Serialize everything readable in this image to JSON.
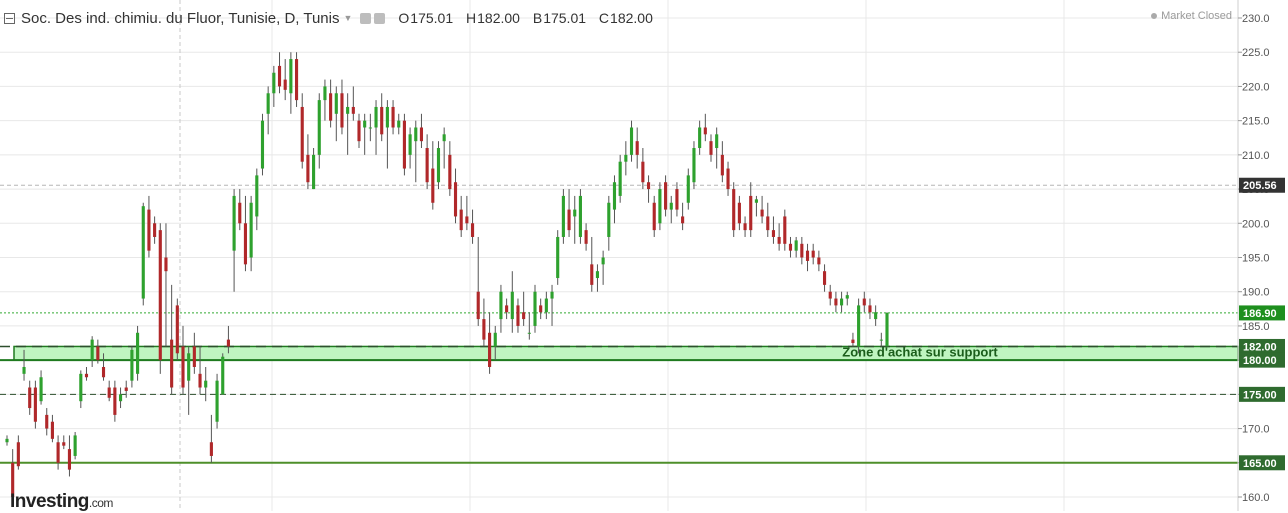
{
  "header": {
    "title": "Soc. Des ind. chimiu. du Fluor, Tunisie, D, Tunis",
    "open_label": "O",
    "open": "175.01",
    "high_label": "H",
    "high": "182.00",
    "low_label": "B",
    "low": "175.01",
    "close_label": "C",
    "close": "182.00"
  },
  "market_status": "Market Closed",
  "brand": {
    "name": "Investing",
    "suffix": ".com"
  },
  "colors": {
    "up": "#2ea12e",
    "down": "#b0282a",
    "zone_fill": "#bff5c0",
    "zone_line": "#1f7a1f",
    "level_line": "#4f8f2a",
    "grid": "#e8e8e8",
    "current_price_tag": "#1e8f1e",
    "level_tag": "#2f6b2f",
    "crosshair_tag": "#333333"
  },
  "chart_data": {
    "type": "candlestick",
    "y_range": [
      158,
      232
    ],
    "y_ticks": [
      160,
      165,
      170,
      175,
      180,
      185,
      190,
      195,
      200,
      205,
      210,
      215,
      220,
      225,
      230
    ],
    "grid": true,
    "support_zone": {
      "from": 180.0,
      "to": 182.0,
      "label": "Zone d'achat sur support"
    },
    "price_tags": [
      {
        "value": "205.56",
        "kind": "crosshair"
      },
      {
        "value": "186.90",
        "kind": "current"
      },
      {
        "value": "182.00",
        "kind": "level"
      },
      {
        "value": "180.00",
        "kind": "level"
      },
      {
        "value": "175.00",
        "kind": "level"
      },
      {
        "value": "165.00",
        "kind": "level"
      }
    ],
    "candles": [
      [
        168,
        169,
        167.5,
        168.5
      ],
      [
        165,
        167,
        159,
        160
      ],
      [
        168,
        169,
        164,
        164.5
      ],
      [
        178,
        181.5,
        177,
        179
      ],
      [
        176,
        177,
        172,
        173
      ],
      [
        176,
        177,
        170,
        171
      ],
      [
        174,
        178.5,
        173.5,
        177.5
      ],
      [
        172,
        173,
        169,
        170
      ],
      [
        171,
        172,
        168,
        168.5
      ],
      [
        168,
        169,
        164,
        165
      ],
      [
        168,
        169,
        167,
        167.5
      ],
      [
        167,
        169,
        163,
        164
      ],
      [
        166,
        169.5,
        165.5,
        169
      ],
      [
        174,
        178.5,
        173,
        178
      ],
      [
        178,
        179,
        177,
        177.5
      ],
      [
        180,
        183.5,
        179,
        183
      ],
      [
        182,
        183,
        179.5,
        180
      ],
      [
        179,
        181,
        177,
        177.5
      ],
      [
        176,
        177,
        174,
        174.5
      ],
      [
        176,
        177,
        171,
        172
      ],
      [
        174,
        176,
        173,
        175
      ],
      [
        176,
        177,
        174.5,
        175.5
      ],
      [
        177,
        182,
        176,
        181.5
      ],
      [
        178,
        185,
        177,
        184
      ],
      [
        189,
        203,
        188,
        202.5
      ],
      [
        202,
        204,
        195,
        196
      ],
      [
        200,
        201,
        197,
        198
      ],
      [
        199,
        200,
        178,
        180
      ],
      [
        195,
        200,
        182,
        193
      ],
      [
        183,
        191,
        175,
        176
      ],
      [
        188,
        189,
        180,
        181
      ],
      [
        182,
        185,
        175,
        176
      ],
      [
        177,
        182,
        172,
        181
      ],
      [
        182,
        184,
        178,
        179
      ],
      [
        178,
        182,
        175,
        176
      ],
      [
        176,
        179,
        174,
        177
      ],
      [
        168,
        172,
        165,
        166
      ],
      [
        171,
        178,
        170,
        177
      ],
      [
        175,
        181,
        175,
        180.5
      ],
      [
        183,
        185,
        181,
        182
      ],
      [
        196,
        205,
        190,
        204
      ],
      [
        203,
        205,
        199,
        200
      ],
      [
        200,
        204,
        193,
        194
      ],
      [
        195,
        204,
        193,
        203
      ],
      [
        201,
        208,
        199,
        207
      ],
      [
        208,
        216,
        207,
        215
      ],
      [
        216,
        220,
        213,
        219
      ],
      [
        219,
        223,
        217,
        222
      ],
      [
        223,
        225,
        219,
        220
      ],
      [
        221,
        224,
        218,
        219.5
      ],
      [
        219,
        225,
        216,
        224
      ],
      [
        224,
        225,
        217,
        218
      ],
      [
        217,
        219,
        208,
        209
      ],
      [
        210,
        213,
        205,
        206
      ],
      [
        205,
        211,
        205,
        210
      ],
      [
        210,
        219,
        208,
        218
      ],
      [
        218,
        221,
        215,
        220
      ],
      [
        219,
        221,
        214,
        215
      ],
      [
        216,
        220,
        212,
        219
      ],
      [
        219,
        221,
        213,
        214
      ],
      [
        216,
        219,
        210,
        217
      ],
      [
        217,
        220,
        215,
        216
      ],
      [
        215,
        216,
        211,
        212
      ],
      [
        214,
        216,
        210,
        215
      ],
      [
        214,
        216,
        212,
        214
      ],
      [
        214,
        218,
        210,
        217
      ],
      [
        217,
        219,
        212,
        213
      ],
      [
        214,
        218,
        208,
        217
      ],
      [
        217,
        218,
        213,
        214
      ],
      [
        214,
        216,
        213,
        215
      ],
      [
        215,
        216,
        207,
        208
      ],
      [
        210,
        214,
        208,
        213
      ],
      [
        212,
        215,
        206,
        214
      ],
      [
        214,
        216,
        211,
        212
      ],
      [
        211,
        213,
        205,
        206
      ],
      [
        208,
        212,
        202,
        203
      ],
      [
        206,
        212,
        205,
        211
      ],
      [
        212,
        214,
        208,
        213
      ],
      [
        210,
        212,
        204,
        205
      ],
      [
        206,
        208,
        200,
        201
      ],
      [
        202,
        204,
        198,
        199
      ],
      [
        201,
        204,
        199,
        200
      ],
      [
        200,
        202,
        197,
        198
      ],
      [
        190,
        198,
        185,
        186
      ],
      [
        186,
        189,
        182,
        183
      ],
      [
        184,
        187,
        178,
        179
      ],
      [
        182,
        185,
        180,
        184
      ],
      [
        186,
        191,
        184,
        190
      ],
      [
        188,
        189,
        186,
        187
      ],
      [
        186,
        193,
        184,
        190
      ],
      [
        188,
        189,
        184,
        185
      ],
      [
        187,
        190,
        185,
        186
      ],
      [
        184,
        187,
        183,
        184
      ],
      [
        185,
        191,
        184,
        190
      ],
      [
        188,
        189,
        186,
        187
      ],
      [
        187,
        190,
        186,
        189
      ],
      [
        189,
        191,
        185,
        190
      ],
      [
        192,
        199,
        191,
        198
      ],
      [
        198,
        205,
        197,
        204
      ],
      [
        202,
        205,
        198,
        199
      ],
      [
        201,
        204,
        197,
        202
      ],
      [
        198,
        205,
        197,
        204
      ],
      [
        199,
        200,
        196,
        197
      ],
      [
        194,
        198,
        190,
        191
      ],
      [
        192,
        194,
        190,
        193
      ],
      [
        194,
        196,
        191,
        195
      ],
      [
        198,
        204,
        196,
        203
      ],
      [
        202,
        207,
        200,
        206
      ],
      [
        204,
        210,
        203,
        209
      ],
      [
        209,
        212,
        207,
        210
      ],
      [
        210,
        215,
        209,
        214
      ],
      [
        212,
        214,
        208,
        210
      ],
      [
        209,
        211,
        205,
        206
      ],
      [
        206,
        207,
        203,
        205
      ],
      [
        203,
        204,
        198,
        199
      ],
      [
        200,
        206,
        199,
        205
      ],
      [
        206,
        207,
        201,
        202
      ],
      [
        202,
        204,
        200,
        203
      ],
      [
        205,
        206,
        201,
        202
      ],
      [
        201,
        203,
        199,
        200
      ],
      [
        203,
        208,
        202,
        207
      ],
      [
        206,
        212,
        205,
        211
      ],
      [
        211,
        215,
        210,
        214
      ],
      [
        214,
        216,
        212,
        213
      ],
      [
        212,
        213,
        209,
        210
      ],
      [
        211,
        214,
        208,
        213
      ],
      [
        210,
        212,
        206,
        207
      ],
      [
        208,
        209,
        204,
        205
      ],
      [
        205,
        206,
        198,
        199
      ],
      [
        203,
        204,
        199,
        200
      ],
      [
        200,
        201,
        198,
        199
      ],
      [
        204,
        206,
        198,
        199
      ],
      [
        203,
        204,
        201,
        203.5
      ],
      [
        202,
        204,
        200,
        201
      ],
      [
        201,
        203,
        198,
        199
      ],
      [
        199,
        201,
        197,
        198
      ],
      [
        198,
        200,
        196,
        197
      ],
      [
        201,
        202,
        196,
        197
      ],
      [
        197,
        198,
        195,
        196
      ],
      [
        196,
        198,
        195,
        197.5
      ],
      [
        197,
        198,
        194,
        195
      ],
      [
        196,
        197,
        193,
        194.5
      ],
      [
        196,
        197,
        194,
        195
      ],
      [
        195,
        196,
        193,
        194
      ],
      [
        193,
        194,
        190,
        191
      ],
      [
        190,
        191,
        188,
        189
      ],
      [
        189,
        190,
        187,
        188
      ],
      [
        188,
        190,
        187,
        189
      ],
      [
        189,
        190,
        188,
        189.5
      ],
      [
        183,
        184,
        182,
        182.5
      ],
      [
        182,
        189,
        181,
        188
      ],
      [
        189,
        190,
        187,
        188
      ],
      [
        188,
        189,
        186,
        187
      ],
      [
        186,
        188,
        185,
        187
      ],
      [
        183,
        184,
        182,
        183
      ],
      [
        182,
        187,
        182,
        186.9
      ]
    ]
  }
}
